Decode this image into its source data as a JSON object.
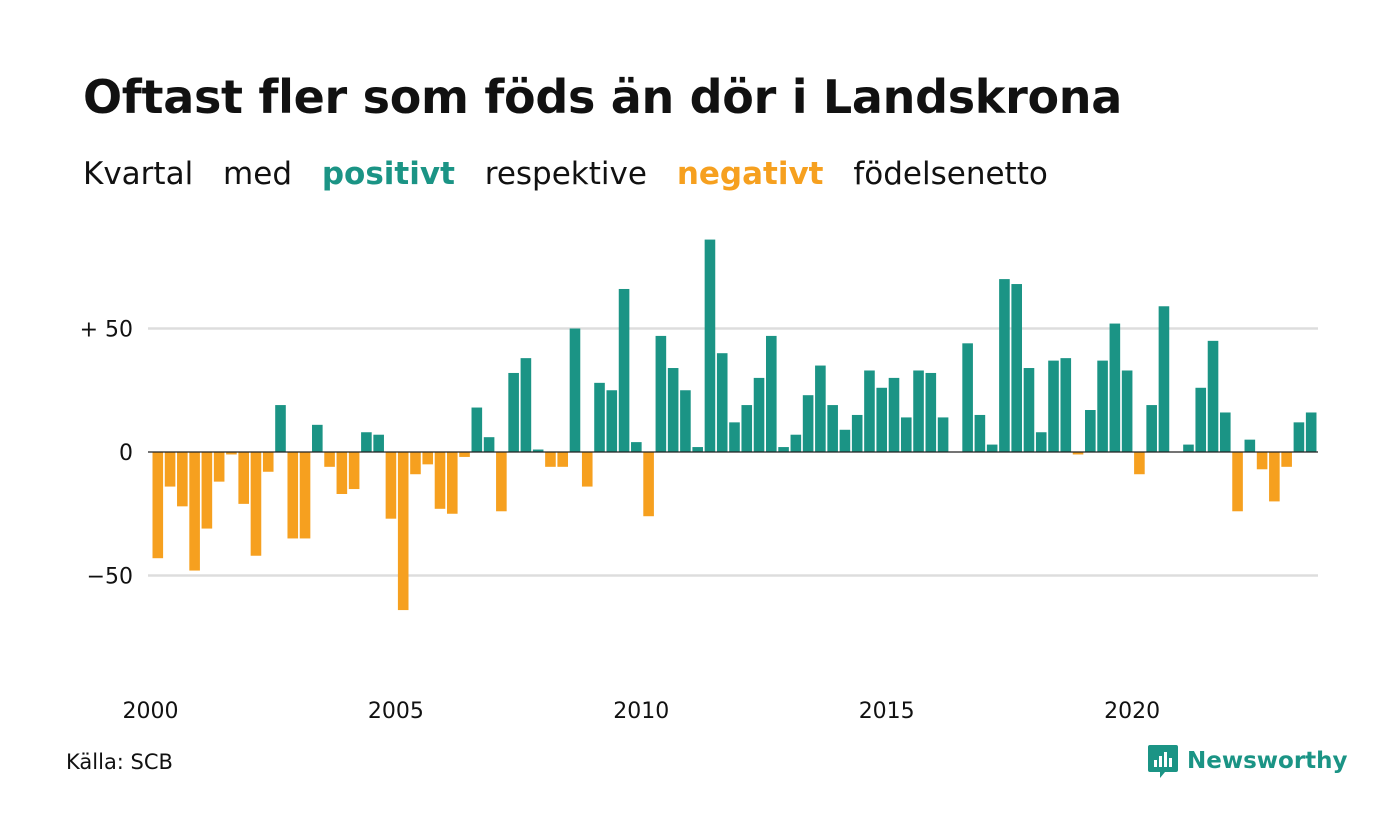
{
  "title": "Oftast fler som föds än dör i Landskrona",
  "subtitle": {
    "part1": "Kvartal",
    "part2": "med",
    "positive_word": "positivt",
    "part3": "respektive",
    "negative_word": "negativt",
    "part4": "födelsenetto"
  },
  "source": "Källa: SCB",
  "brand": "Newsworthy",
  "colors": {
    "positive": "#1b9485",
    "negative": "#f6a01f",
    "grid": "#dddddd",
    "brand": "#1b9485"
  },
  "chart_data": {
    "type": "bar",
    "y_tick_labels": [
      "+ 50",
      "0",
      "−50"
    ],
    "y_ticks": [
      50,
      0,
      -50
    ],
    "ylim": [
      -80,
      90
    ],
    "x_tick_labels": [
      "2000",
      "2005",
      "2010",
      "2015",
      "2020"
    ],
    "x_ticks": [
      2000,
      2005,
      2010,
      2015,
      2020
    ],
    "x_start": 2000,
    "quarters_per_year": 4,
    "grid": true,
    "values": [
      -43,
      -14,
      -22,
      -48,
      -31,
      -12,
      -1,
      -21,
      -42,
      -8,
      19,
      -35,
      -35,
      11,
      -6,
      -17,
      -15,
      8,
      7,
      -27,
      -64,
      -9,
      -5,
      -23,
      -25,
      -2,
      18,
      6,
      -24,
      32,
      38,
      1,
      -6,
      -6,
      50,
      -14,
      28,
      25,
      66,
      4,
      -26,
      47,
      34,
      25,
      2,
      86,
      40,
      12,
      19,
      30,
      47,
      2,
      7,
      23,
      35,
      19,
      9,
      15,
      33,
      26,
      30,
      14,
      33,
      32,
      14,
      0,
      44,
      15,
      3,
      70,
      68,
      34,
      8,
      37,
      38,
      -1,
      17,
      37,
      52,
      33,
      -9,
      19,
      59,
      0,
      3,
      26,
      45,
      16,
      -24,
      5,
      -7,
      -20,
      -6,
      12,
      16
    ]
  }
}
